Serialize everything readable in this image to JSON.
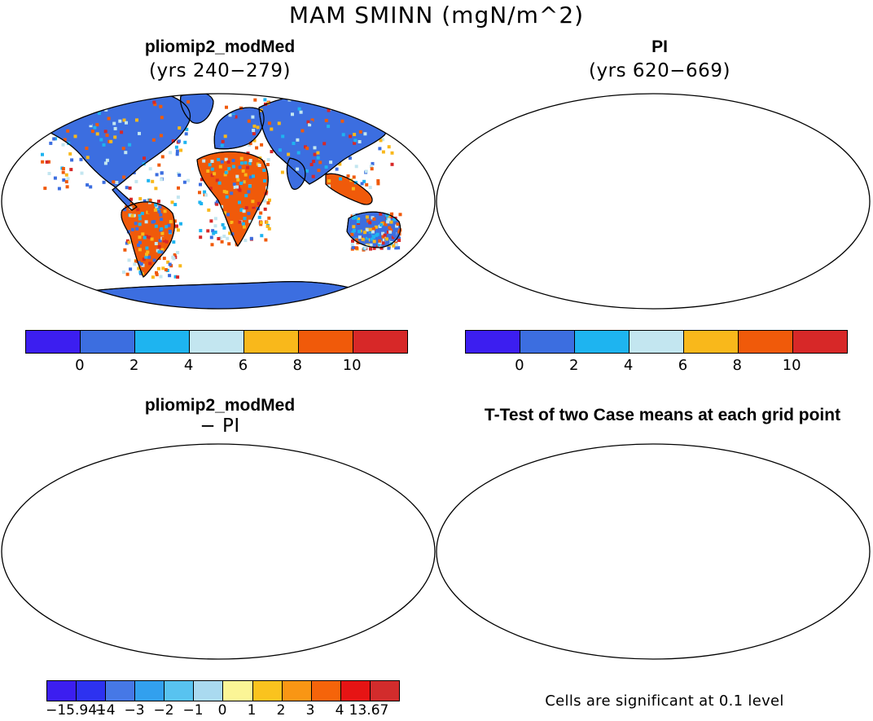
{
  "figure": {
    "title": "MAM SMINN (mgN/m^2)",
    "note": "Cells are significant at 0.1 level"
  },
  "panels": {
    "top_left": {
      "title": "pliomip2_modMed",
      "subtitle": "(yrs 240−279)"
    },
    "top_right": {
      "title": "PI",
      "subtitle": "(yrs 620−669)"
    },
    "bottom_left": {
      "title": "pliomip2_modMed",
      "subtitle": "− PI"
    },
    "bottom_right": {
      "title": "T-Test of two Case means at each grid point"
    }
  },
  "colorbars": {
    "absolute": {
      "colors": [
        "#3c1ef0",
        "#3c6ee0",
        "#1eb4f0",
        "#c3e6f0",
        "#f9b81b",
        "#f05a0a",
        "#d72828"
      ],
      "labels": [
        "0",
        "2",
        "4",
        "6",
        "8",
        "10"
      ]
    },
    "difference": {
      "colors": [
        "#3c1ef0",
        "#2d32f0",
        "#4678e6",
        "#32a0ee",
        "#58c3f0",
        "#aadaf0",
        "#fbf596",
        "#fac31e",
        "#f99614",
        "#f5640a",
        "#e61414",
        "#d22c2c"
      ],
      "labels": [
        "−15.941",
        "−4",
        "−3",
        "−2",
        "−1",
        "0",
        "1",
        "2",
        "3",
        "4",
        "13.67"
      ]
    }
  },
  "colors": {
    "ocean": "#ffffff",
    "significant": "#e60000",
    "antarctica_abs": "#3c6ee0",
    "antarctica_diff": "#fbf596"
  }
}
